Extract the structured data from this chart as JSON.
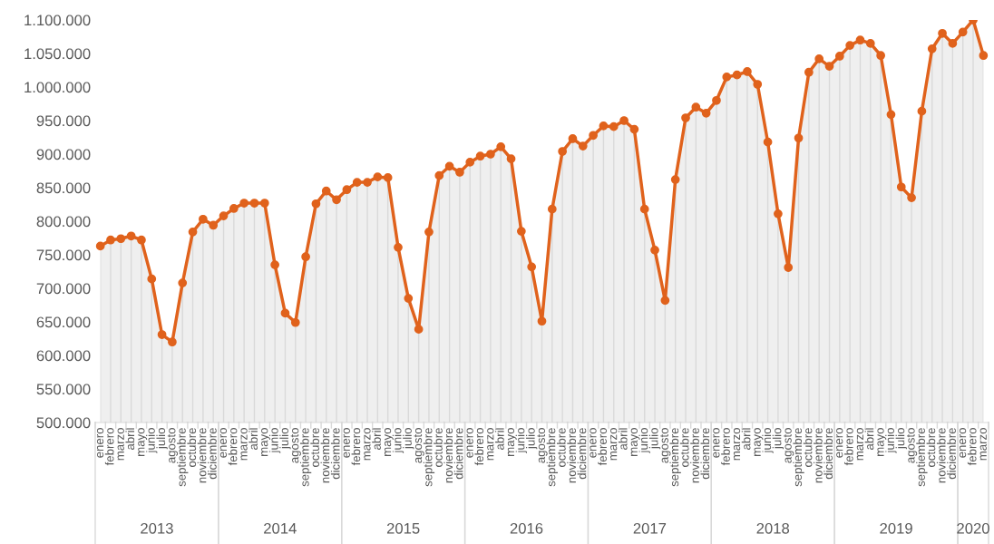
{
  "chart_data": {
    "type": "area",
    "categories": [
      "enero",
      "febrero",
      "marzo",
      "abril",
      "mayo",
      "junio",
      "julio",
      "agosto",
      "septiembre",
      "octubre",
      "noviembre",
      "diciembre",
      "enero",
      "febrero",
      "marzo",
      "abril",
      "mayo",
      "junio",
      "julio",
      "agosto",
      "septiembre",
      "octubre",
      "noviembre",
      "diciembre",
      "enero",
      "febrero",
      "marzo",
      "abril",
      "mayo",
      "junio",
      "julio",
      "agosto",
      "septiembre",
      "octubre",
      "noviembre",
      "diciembre",
      "enero",
      "febrero",
      "marzo",
      "abril",
      "mayo",
      "junio",
      "julio",
      "agosto",
      "septiembre",
      "octubre",
      "noviembre",
      "diciembre",
      "enero",
      "febrero",
      "marzo",
      "abril",
      "mayo",
      "junio",
      "julio",
      "agosto",
      "septiembre",
      "octubre",
      "noviembre",
      "diciembre",
      "enero",
      "febrero",
      "marzo",
      "abril",
      "mayo",
      "junio",
      "julio",
      "agosto",
      "septiembre",
      "octubre",
      "noviembre",
      "diciembre",
      "enero",
      "febrero",
      "marzo",
      "abril",
      "mayo",
      "junio",
      "julio",
      "agosto",
      "septiembre",
      "octubre",
      "noviembre",
      "diciembre",
      "enero",
      "febrero",
      "marzo"
    ],
    "series": [
      {
        "color": "#e0621c",
        "values": [
          763000,
          772000,
          774000,
          778000,
          772000,
          714000,
          631000,
          620000,
          708000,
          784000,
          803000,
          794000,
          808000,
          819000,
          827000,
          827000,
          827000,
          735000,
          663000,
          649000,
          747000,
          826000,
          845000,
          832000,
          847000,
          858000,
          858000,
          866000,
          865000,
          761000,
          685000,
          639000,
          784000,
          868000,
          882000,
          873000,
          888000,
          897000,
          900000,
          911000,
          893000,
          785000,
          732000,
          651000,
          818000,
          904000,
          923000,
          912000,
          928000,
          942000,
          941000,
          950000,
          937000,
          818000,
          757000,
          682000,
          862000,
          954000,
          970000,
          961000,
          980000,
          1015000,
          1018000,
          1023000,
          1004000,
          918000,
          811000,
          731000,
          924000,
          1022000,
          1042000,
          1031000,
          1046000,
          1062000,
          1070000,
          1065000,
          1047000,
          959000,
          851000,
          835000,
          964000,
          1057000,
          1080000,
          1065000,
          1082000,
          1100000,
          1047000
        ]
      }
    ],
    "annotations": [
      "2013",
      "2014",
      "2015",
      "2016",
      "2017",
      "2018",
      "2019",
      "2020"
    ],
    "ylim": [
      500000,
      1100000
    ],
    "yticks": [
      {
        "value": 500000,
        "label": "500.000"
      },
      {
        "value": 550000,
        "label": "550.000"
      },
      {
        "value": 600000,
        "label": "600.000"
      },
      {
        "value": 650000,
        "label": "650.000"
      },
      {
        "value": 700000,
        "label": "700.000"
      },
      {
        "value": 750000,
        "label": "750.000"
      },
      {
        "value": 800000,
        "label": "800.000"
      },
      {
        "value": 850000,
        "label": "850.000"
      },
      {
        "value": 900000,
        "label": "900.000"
      },
      {
        "value": 950000,
        "label": "950.000"
      },
      {
        "value": 1000000,
        "label": "1.000.000"
      },
      {
        "value": 1050000,
        "label": "1.050.000"
      },
      {
        "value": 1100000,
        "label": "1.100.000"
      }
    ],
    "grid": "x",
    "legend": false,
    "marker": "circle",
    "line_style": "solid"
  }
}
